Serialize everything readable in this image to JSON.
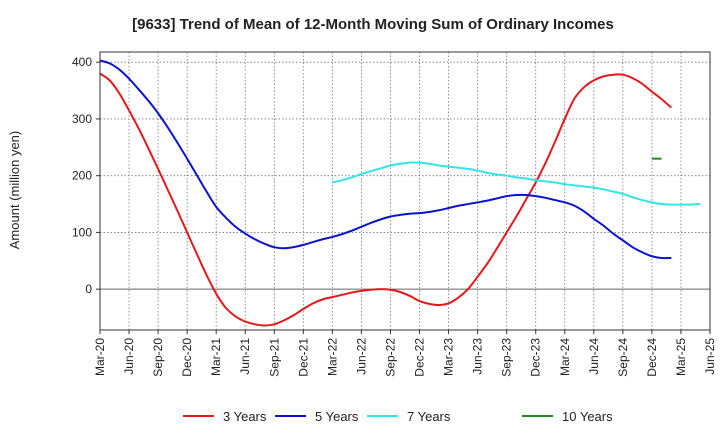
{
  "chart_data": {
    "type": "line",
    "title": "[9633]  Trend of Mean of 12-Month Moving Sum of Ordinary Incomes",
    "ylabel": "Amount (million yen)",
    "xlabel": "",
    "ylim": [
      -72,
      418
    ],
    "yticks": [
      0,
      100,
      200,
      300,
      400
    ],
    "grid": true,
    "legend_position": "bottom",
    "x_start": "Mar-20",
    "x_tick_labels": [
      "Mar-20",
      "Jun-20",
      "Sep-20",
      "Dec-20",
      "Mar-21",
      "Jun-21",
      "Sep-21",
      "Dec-21",
      "Mar-22",
      "Jun-22",
      "Sep-22",
      "Dec-22",
      "Mar-23",
      "Jun-23",
      "Sep-23",
      "Dec-23",
      "Mar-24",
      "Jun-24",
      "Sep-24",
      "Dec-24",
      "Mar-25",
      "Jun-25"
    ],
    "series": [
      {
        "name": "3 Years",
        "color": "#e31a1c",
        "start_index": 0,
        "values": [
          380,
          368,
          345,
          315,
          283,
          248,
          212,
          175,
          138,
          100,
          62,
          25,
          -8,
          -33,
          -48,
          -57,
          -62,
          -64,
          -62,
          -55,
          -46,
          -35,
          -25,
          -18,
          -14,
          -10,
          -6,
          -3,
          -1,
          0,
          -1,
          -5,
          -12,
          -21,
          -26,
          -28,
          -25,
          -15,
          0,
          22,
          45,
          72,
          100,
          128,
          158,
          188,
          222,
          260,
          300,
          336,
          356,
          368,
          375,
          378,
          378,
          372,
          362,
          348,
          335,
          320
        ]
      },
      {
        "name": "5 Years",
        "color": "#0a14cc",
        "start_index": 0,
        "values": [
          403,
          398,
          387,
          371,
          352,
          332,
          310,
          285,
          258,
          230,
          201,
          172,
          145,
          126,
          110,
          98,
          88,
          80,
          74,
          72,
          74,
          78,
          83,
          88,
          92,
          97,
          103,
          110,
          117,
          123,
          128,
          131,
          133,
          134,
          136,
          139,
          143,
          147,
          150,
          153,
          156,
          160,
          164,
          166,
          166,
          164,
          161,
          157,
          153,
          147,
          137,
          124,
          112,
          98,
          86,
          74,
          65,
          58,
          55,
          55
        ]
      },
      {
        "name": "7 Years",
        "color": "#33e6e6",
        "start_index": 24,
        "values": [
          188,
          192,
          197,
          203,
          208,
          213,
          218,
          221,
          223,
          223,
          221,
          218,
          216,
          214,
          212,
          209,
          205,
          202,
          200,
          197,
          195,
          192,
          190,
          188,
          185,
          183,
          181,
          179,
          176,
          172,
          168,
          162,
          157,
          153,
          150,
          149,
          149,
          149,
          150
        ]
      },
      {
        "name": "10 Years",
        "color": "#228b22",
        "start_index": 57,
        "values": [
          230,
          230
        ]
      }
    ]
  }
}
